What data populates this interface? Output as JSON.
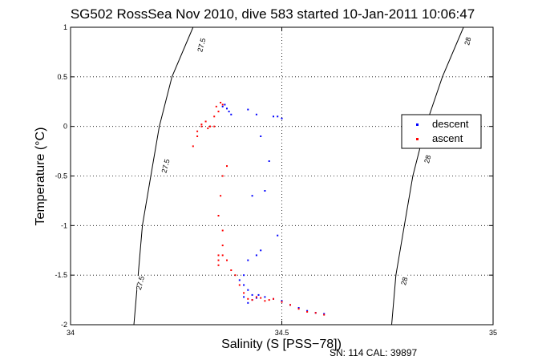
{
  "chart_data": {
    "type": "scatter",
    "title": "SG502 RossSea Nov 2010, dive 583 started 10-Jan-2011 10:06:47",
    "xlabel": "Salinity (S [PSS−78])",
    "ylabel": "Temperature (°C)",
    "xlim": [
      34,
      35
    ],
    "ylim": [
      -2,
      1
    ],
    "x_ticks": [
      {
        "value": 34,
        "label": "34"
      },
      {
        "value": 34.5,
        "label": "34.5"
      },
      {
        "value": 35,
        "label": "35"
      }
    ],
    "y_ticks": [
      {
        "value": -2,
        "label": "-2"
      },
      {
        "value": -1.5,
        "label": "-1.5"
      },
      {
        "value": -1,
        "label": "-1"
      },
      {
        "value": -0.5,
        "label": "-0.5"
      },
      {
        "value": 0,
        "label": "0"
      },
      {
        "value": 0.5,
        "label": "0.5"
      },
      {
        "value": 1,
        "label": "1"
      }
    ],
    "grid": true,
    "legend_position": "right",
    "footer": "SN: 114  CAL: 39897",
    "contours": [
      {
        "label": "27.5",
        "points": [
          [
            34.29,
            1.0
          ],
          [
            34.24,
            0.5
          ],
          [
            34.21,
            0.0
          ],
          [
            34.19,
            -0.5
          ],
          [
            34.17,
            -1.0
          ],
          [
            34.16,
            -1.5
          ],
          [
            34.15,
            -2.0
          ]
        ],
        "label_positions": [
          [
            34.31,
            0.82
          ],
          [
            34.225,
            -0.4
          ],
          [
            34.165,
            -1.58
          ]
        ]
      },
      {
        "label": "28",
        "points": [
          [
            34.93,
            1.0
          ],
          [
            34.88,
            0.5
          ],
          [
            34.84,
            0.0
          ],
          [
            34.81,
            -0.5
          ],
          [
            34.79,
            -1.0
          ],
          [
            34.77,
            -1.5
          ],
          [
            34.76,
            -2.0
          ]
        ],
        "label_positions": [
          [
            34.94,
            0.86
          ],
          [
            34.845,
            -0.33
          ],
          [
            34.79,
            -1.56
          ]
        ]
      }
    ],
    "series": [
      {
        "name": "descent",
        "color": "#0000ff",
        "x": [
          34.36,
          34.37,
          34.375,
          34.38,
          34.365,
          34.42,
          34.44,
          34.48,
          34.49,
          34.5,
          34.45,
          34.47,
          34.46,
          34.43,
          34.49,
          34.45,
          34.44,
          34.42,
          34.41,
          34.4,
          34.41,
          34.42,
          34.43,
          34.41,
          34.42,
          34.43,
          34.44,
          34.445,
          34.46,
          34.48,
          34.5,
          34.52,
          34.54,
          34.56,
          34.58,
          34.6
        ],
        "y": [
          0.2,
          0.18,
          0.15,
          0.12,
          0.22,
          0.17,
          0.12,
          0.1,
          0.1,
          0.08,
          -0.1,
          -0.35,
          -0.65,
          -0.7,
          -1.1,
          -1.25,
          -1.3,
          -1.35,
          -1.5,
          -1.55,
          -1.6,
          -1.65,
          -1.7,
          -1.72,
          -1.78,
          -1.75,
          -1.73,
          -1.7,
          -1.72,
          -1.74,
          -1.76,
          -1.8,
          -1.83,
          -1.86,
          -1.88,
          -1.89
        ]
      },
      {
        "name": "ascent",
        "color": "#ff0000",
        "x": [
          34.29,
          34.3,
          34.31,
          34.32,
          34.33,
          34.34,
          34.35,
          34.36,
          34.355,
          34.345,
          34.34,
          34.33,
          34.325,
          34.31,
          34.3,
          34.37,
          34.36,
          34.355,
          34.35,
          34.36,
          34.36,
          34.35,
          34.35,
          34.35,
          34.36,
          34.37,
          34.38,
          34.39,
          34.4,
          34.41,
          34.42,
          34.43,
          34.44,
          34.45,
          34.46,
          34.47,
          34.48,
          34.5,
          34.52,
          34.54,
          34.56,
          34.58,
          34.6
        ],
        "y": [
          -0.2,
          -0.1,
          0.0,
          0.05,
          0.0,
          0.0,
          0.15,
          0.22,
          0.24,
          0.2,
          0.1,
          0.0,
          -0.02,
          0.02,
          -0.05,
          -0.4,
          -0.5,
          -0.7,
          -0.9,
          -1.05,
          -1.2,
          -1.3,
          -1.35,
          -1.4,
          -1.3,
          -1.35,
          -1.45,
          -1.5,
          -1.6,
          -1.68,
          -1.74,
          -1.75,
          -1.72,
          -1.73,
          -1.76,
          -1.75,
          -1.74,
          -1.77,
          -1.8,
          -1.84,
          -1.87,
          -1.88,
          -1.9
        ]
      }
    ]
  }
}
